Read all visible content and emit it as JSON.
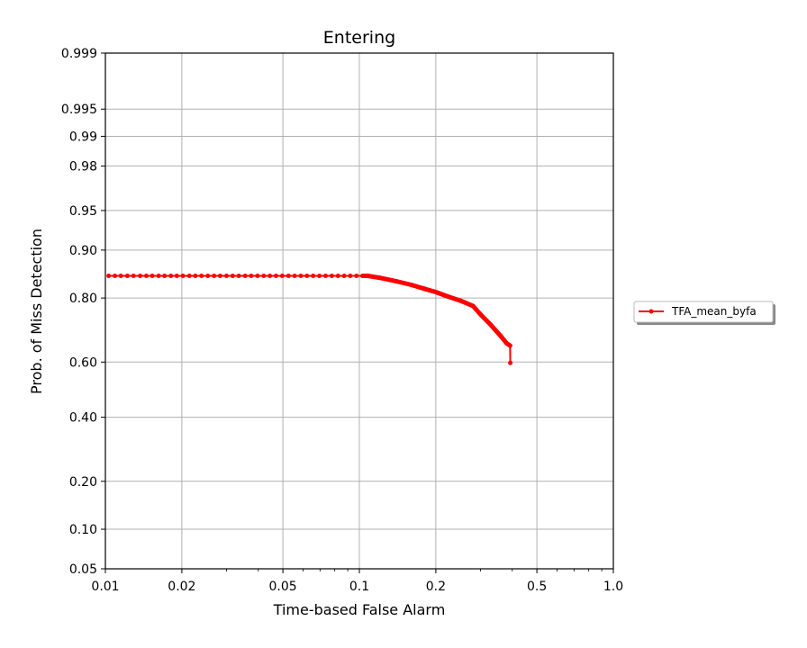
{
  "chart_data": {
    "type": "line",
    "title": "Entering",
    "xlabel": "Time-based False Alarm",
    "ylabel": "Prob. of Miss Detection",
    "x_scale": "log",
    "y_scale": "normal-deviate",
    "xlim": [
      0.01,
      1.0
    ],
    "ylim": [
      0.05,
      0.999
    ],
    "x_ticks": [
      0.01,
      0.02,
      0.05,
      0.1,
      0.2,
      0.5,
      1.0
    ],
    "x_tick_labels": [
      "0.01",
      "0.02",
      "0.05",
      "0.1",
      "0.2",
      "0.5",
      "1.0"
    ],
    "y_ticks": [
      0.05,
      0.1,
      0.2,
      0.4,
      0.6,
      0.8,
      0.9,
      0.95,
      0.98,
      0.99,
      0.995,
      0.999
    ],
    "y_tick_labels": [
      "0.05",
      "0.10",
      "0.20",
      "0.40",
      "0.60",
      "0.80",
      "0.90",
      "0.95",
      "0.98",
      "0.99",
      "0.995",
      "0.999"
    ],
    "grid": true,
    "legend_position": "right",
    "series": [
      {
        "name": "TFA_mean_byfa",
        "color": "#ff0000",
        "marker": "circle",
        "x": [
          0.0103,
          0.0109,
          0.0115,
          0.0122,
          0.0129,
          0.0137,
          0.0145,
          0.0153,
          0.0162,
          0.0171,
          0.0181,
          0.0191,
          0.0202,
          0.0214,
          0.0226,
          0.0239,
          0.0253,
          0.0268,
          0.0283,
          0.03,
          0.0317,
          0.0335,
          0.0355,
          0.0375,
          0.0397,
          0.042,
          0.0444,
          0.047,
          0.0497,
          0.0526,
          0.0556,
          0.0588,
          0.0622,
          0.0658,
          0.0696,
          0.0736,
          0.0779,
          0.0824,
          0.0871,
          0.0921,
          0.0974,
          0.103,
          0.108,
          0.12,
          0.14,
          0.16,
          0.18,
          0.2,
          0.22,
          0.25,
          0.28,
          0.3,
          0.33,
          0.36,
          0.38,
          0.392,
          0.393
        ],
        "y": [
          0.852,
          0.852,
          0.852,
          0.852,
          0.852,
          0.852,
          0.852,
          0.852,
          0.852,
          0.852,
          0.852,
          0.852,
          0.852,
          0.852,
          0.852,
          0.852,
          0.852,
          0.852,
          0.852,
          0.852,
          0.852,
          0.852,
          0.852,
          0.852,
          0.852,
          0.852,
          0.852,
          0.852,
          0.852,
          0.852,
          0.852,
          0.852,
          0.852,
          0.852,
          0.852,
          0.852,
          0.852,
          0.852,
          0.852,
          0.852,
          0.852,
          0.852,
          0.852,
          0.848,
          0.84,
          0.832,
          0.823,
          0.815,
          0.805,
          0.793,
          0.779,
          0.755,
          0.723,
          0.689,
          0.665,
          0.657,
          0.597
        ]
      }
    ]
  }
}
